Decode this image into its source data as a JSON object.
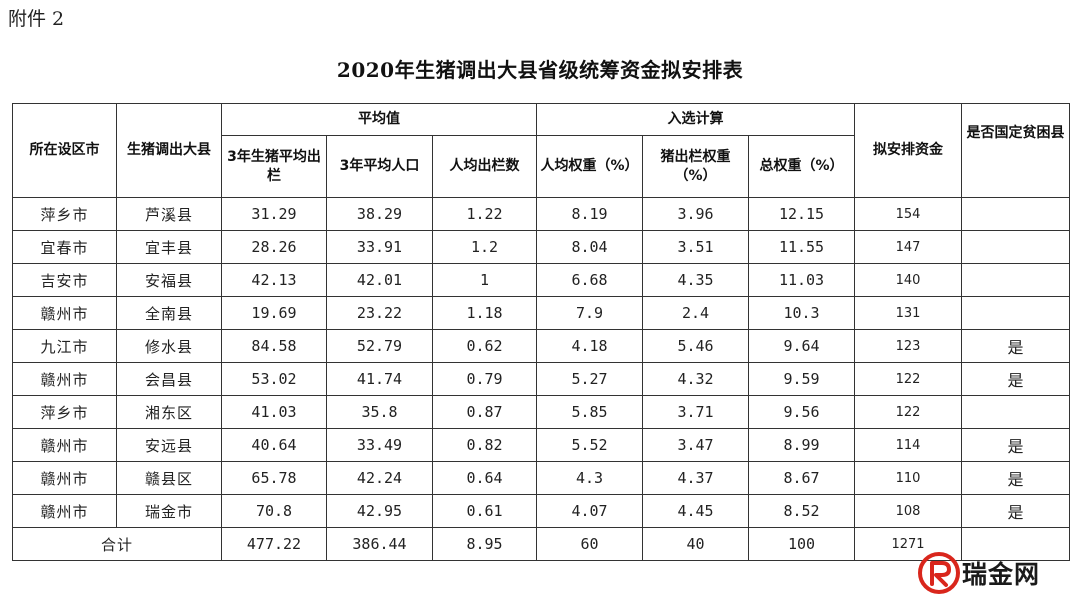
{
  "attachment": "附件 2",
  "title": "2020年生猪调出大县省级统筹资金拟安排表",
  "header": {
    "city": "所在设区市",
    "county": "生猪调出大县",
    "avg_group": "平均值",
    "calc_group": "入选计算",
    "avg_cols": [
      "3年生猪平均出栏",
      "3年平均人口",
      "人均出栏数"
    ],
    "calc_cols": [
      "人均权重（%）",
      "猪出栏权重（%）",
      "总权重（%）"
    ],
    "fund": "拟安排资金",
    "poor": "是否国定贫困县"
  },
  "rows": [
    {
      "city": "萍乡市",
      "county": "芦溪县",
      "out": "31.29",
      "pop": "38.29",
      "per": "1.22",
      "w_per": "8.19",
      "w_pig": "3.96",
      "w_total": "12.15",
      "fund": "154",
      "poor": ""
    },
    {
      "city": "宜春市",
      "county": "宜丰县",
      "out": "28.26",
      "pop": "33.91",
      "per": "1.2",
      "w_per": "8.04",
      "w_pig": "3.51",
      "w_total": "11.55",
      "fund": "147",
      "poor": ""
    },
    {
      "city": "吉安市",
      "county": "安福县",
      "out": "42.13",
      "pop": "42.01",
      "per": "1",
      "w_per": "6.68",
      "w_pig": "4.35",
      "w_total": "11.03",
      "fund": "140",
      "poor": ""
    },
    {
      "city": "赣州市",
      "county": "全南县",
      "out": "19.69",
      "pop": "23.22",
      "per": "1.18",
      "w_per": "7.9",
      "w_pig": "2.4",
      "w_total": "10.3",
      "fund": "131",
      "poor": ""
    },
    {
      "city": "九江市",
      "county": "修水县",
      "out": "84.58",
      "pop": "52.79",
      "per": "0.62",
      "w_per": "4.18",
      "w_pig": "5.46",
      "w_total": "9.64",
      "fund": "123",
      "poor": "是"
    },
    {
      "city": "赣州市",
      "county": "会昌县",
      "out": "53.02",
      "pop": "41.74",
      "per": "0.79",
      "w_per": "5.27",
      "w_pig": "4.32",
      "w_total": "9.59",
      "fund": "122",
      "poor": "是"
    },
    {
      "city": "萍乡市",
      "county": "湘东区",
      "out": "41.03",
      "pop": "35.8",
      "per": "0.87",
      "w_per": "5.85",
      "w_pig": "3.71",
      "w_total": "9.56",
      "fund": "122",
      "poor": ""
    },
    {
      "city": "赣州市",
      "county": "安远县",
      "out": "40.64",
      "pop": "33.49",
      "per": "0.82",
      "w_per": "5.52",
      "w_pig": "3.47",
      "w_total": "8.99",
      "fund": "114",
      "poor": "是"
    },
    {
      "city": "赣州市",
      "county": "赣县区",
      "out": "65.78",
      "pop": "42.24",
      "per": "0.64",
      "w_per": "4.3",
      "w_pig": "4.37",
      "w_total": "8.67",
      "fund": "110",
      "poor": "是"
    },
    {
      "city": "赣州市",
      "county": "瑞金市",
      "out": "70.8",
      "pop": "42.95",
      "per": "0.61",
      "w_per": "4.07",
      "w_pig": "4.45",
      "w_total": "8.52",
      "fund": "108",
      "poor": "是"
    }
  ],
  "total": {
    "label": "合计",
    "out": "477.22",
    "pop": "386.44",
    "per": "8.95",
    "w_per": "60",
    "w_pig": "40",
    "w_total": "100",
    "fund": "1271",
    "poor": ""
  },
  "watermark": {
    "text": "瑞金网",
    "accent": "#d9261c"
  }
}
